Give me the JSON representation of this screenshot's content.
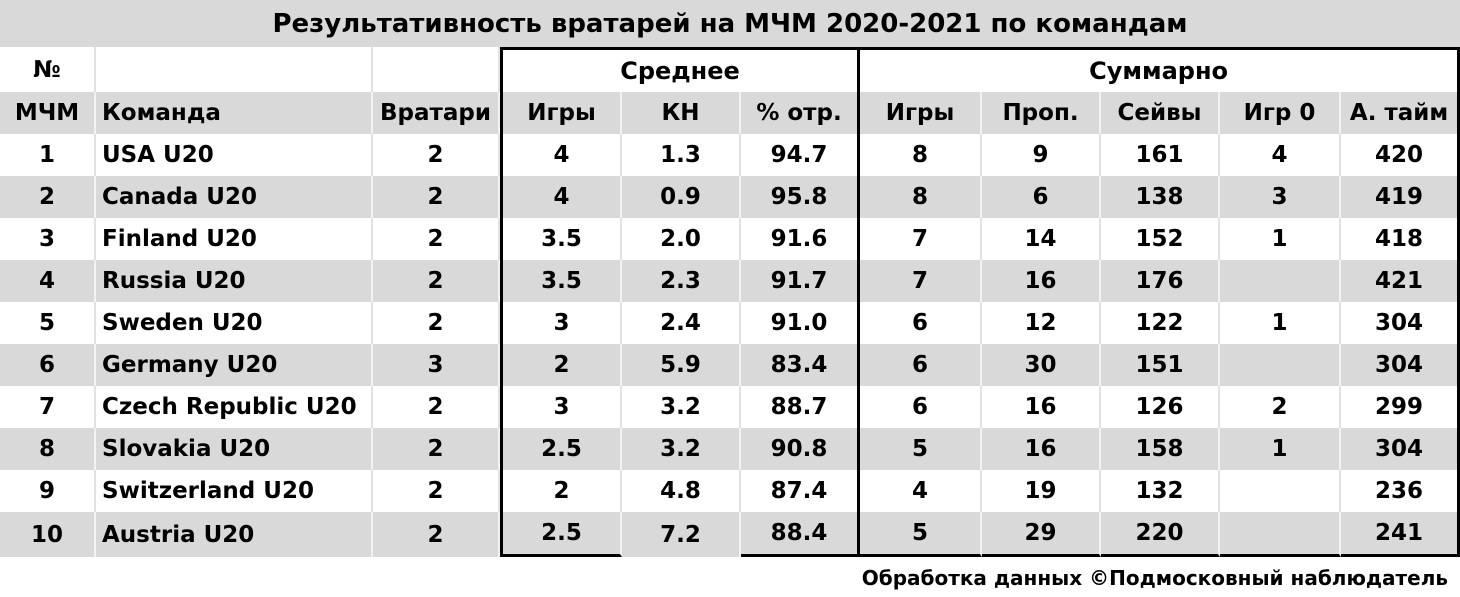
{
  "title": "Результативность вратарей на МЧМ 2020-2021 по командам",
  "header": {
    "num_top": "№",
    "num_bottom": "МЧМ",
    "team": "Команда",
    "goalies": "Вратари",
    "group_avg": "Среднее",
    "group_total": "Суммарно",
    "avg_games": "Игры",
    "avg_gaa": "КН",
    "avg_svpct": "% отр.",
    "tot_games": "Игры",
    "tot_ga": "Проп.",
    "tot_saves": "Сейвы",
    "tot_shutouts": "Игр 0",
    "tot_toi": "А. тайм"
  },
  "rows": [
    {
      "rank": "1",
      "team": "USA U20",
      "goalies": "2",
      "avg_games": "4",
      "gaa": "1.3",
      "svpct": "94.7",
      "games": "8",
      "ga": "9",
      "saves": "161",
      "shutouts": "4",
      "toi": "420"
    },
    {
      "rank": "2",
      "team": "Canada U20",
      "goalies": "2",
      "avg_games": "4",
      "gaa": "0.9",
      "svpct": "95.8",
      "games": "8",
      "ga": "6",
      "saves": "138",
      "shutouts": "3",
      "toi": "419"
    },
    {
      "rank": "3",
      "team": "Finland U20",
      "goalies": "2",
      "avg_games": "3.5",
      "gaa": "2.0",
      "svpct": "91.6",
      "games": "7",
      "ga": "14",
      "saves": "152",
      "shutouts": "1",
      "toi": "418"
    },
    {
      "rank": "4",
      "team": "Russia U20",
      "goalies": "2",
      "avg_games": "3.5",
      "gaa": "2.3",
      "svpct": "91.7",
      "games": "7",
      "ga": "16",
      "saves": "176",
      "shutouts": "",
      "toi": "421"
    },
    {
      "rank": "5",
      "team": "Sweden U20",
      "goalies": "2",
      "avg_games": "3",
      "gaa": "2.4",
      "svpct": "91.0",
      "games": "6",
      "ga": "12",
      "saves": "122",
      "shutouts": "1",
      "toi": "304"
    },
    {
      "rank": "6",
      "team": "Germany U20",
      "goalies": "3",
      "avg_games": "2",
      "gaa": "5.9",
      "svpct": "83.4",
      "games": "6",
      "ga": "30",
      "saves": "151",
      "shutouts": "",
      "toi": "304"
    },
    {
      "rank": "7",
      "team": "Czech Republic U20",
      "goalies": "2",
      "avg_games": "3",
      "gaa": "3.2",
      "svpct": "88.7",
      "games": "6",
      "ga": "16",
      "saves": "126",
      "shutouts": "2",
      "toi": "299"
    },
    {
      "rank": "8",
      "team": "Slovakia U20",
      "goalies": "2",
      "avg_games": "2.5",
      "gaa": "3.2",
      "svpct": "90.8",
      "games": "5",
      "ga": "16",
      "saves": "158",
      "shutouts": "1",
      "toi": "304"
    },
    {
      "rank": "9",
      "team": "Switzerland U20",
      "goalies": "2",
      "avg_games": "2",
      "gaa": "4.8",
      "svpct": "87.4",
      "games": "4",
      "ga": "19",
      "saves": "132",
      "shutouts": "",
      "toi": "236"
    },
    {
      "rank": "10",
      "team": "Austria U20",
      "goalies": "2",
      "avg_games": "2.5",
      "gaa": "7.2",
      "svpct": "88.4",
      "games": "5",
      "ga": "29",
      "saves": "220",
      "shutouts": "",
      "toi": "241"
    }
  ],
  "footer": "Обработка данных ©Подмосковный наблюдатель",
  "colors": {
    "stripe": "#d9d9d9",
    "box_border": "#000000"
  }
}
